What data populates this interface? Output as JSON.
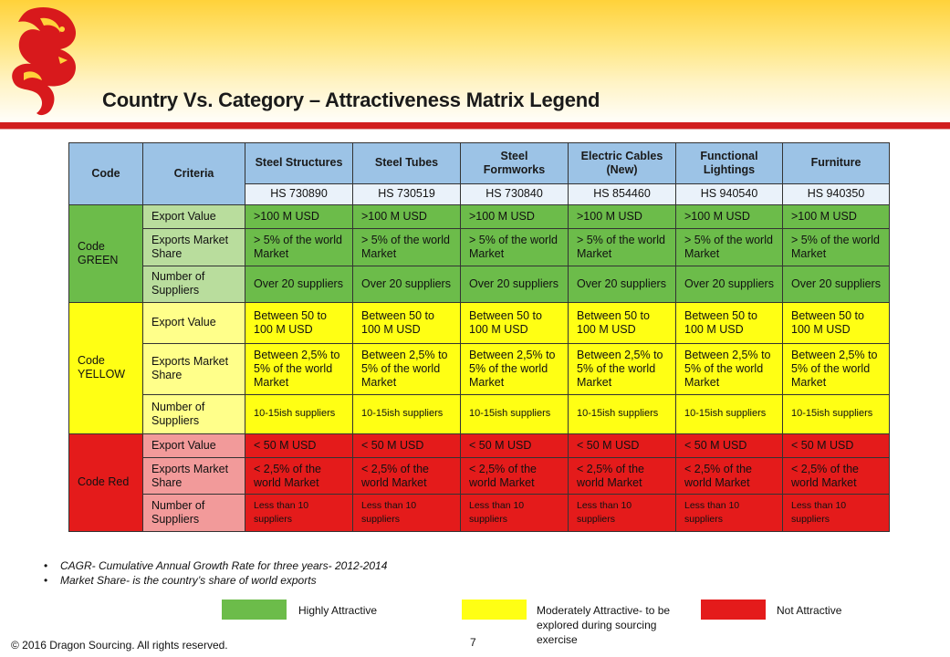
{
  "title": "Country Vs. Category – Attractiveness Matrix Legend",
  "colors": {
    "header": "#9cc3e6",
    "green": "#6cbc4a",
    "yellow": "#ffff14",
    "red": "#e41b1b"
  },
  "table": {
    "code_header": "Code",
    "criteria_header": "Criteria",
    "categories": [
      {
        "name": "Steel Structures",
        "hs": "HS 730890"
      },
      {
        "name": "Steel Tubes",
        "hs": "HS 730519"
      },
      {
        "name": "Steel Formworks",
        "hs": "HS 730840"
      },
      {
        "name": "Electric Cables (New)",
        "hs": "HS 854460"
      },
      {
        "name": "Functional Lightings",
        "hs": "HS 940540"
      },
      {
        "name": "Furniture",
        "hs": "HS 940350"
      }
    ],
    "groups": {
      "green": {
        "label": "Code GREEN",
        "rows": [
          {
            "criteria": "Export Value",
            "value": ">100 M USD"
          },
          {
            "criteria": "Exports Market Share",
            "value": "> 5% of the world Market"
          },
          {
            "criteria": "Number of Suppliers",
            "value": "Over 20 suppliers"
          }
        ]
      },
      "yellow": {
        "label": "Code YELLOW",
        "rows": [
          {
            "criteria": "Export Value",
            "value": "Between 50 to 100 M USD"
          },
          {
            "criteria": "Exports Market Share",
            "value": "Between 2,5% to 5% of the world Market"
          },
          {
            "criteria": "Number of Suppliers",
            "value": "10-15ish suppliers"
          }
        ]
      },
      "red": {
        "label": "Code Red",
        "rows": [
          {
            "criteria": "Export Value",
            "value": "< 50 M USD"
          },
          {
            "criteria": "Exports Market Share",
            "value": "< 2,5% of the world Market"
          },
          {
            "criteria": "Number of Suppliers",
            "value": "Less than 10 suppliers"
          }
        ]
      }
    }
  },
  "notes": [
    "CAGR- Cumulative Annual Growth Rate for three years- 2012-2014",
    "Market Share- is the country’s share of world exports"
  ],
  "legend": {
    "highly": "Highly Attractive",
    "moderately": "Moderately Attractive- to be explored during sourcing exercise",
    "not": "Not Attractive"
  },
  "footer": {
    "copyright": "© 2016 Dragon Sourcing. All rights reserved.",
    "page": "7"
  }
}
